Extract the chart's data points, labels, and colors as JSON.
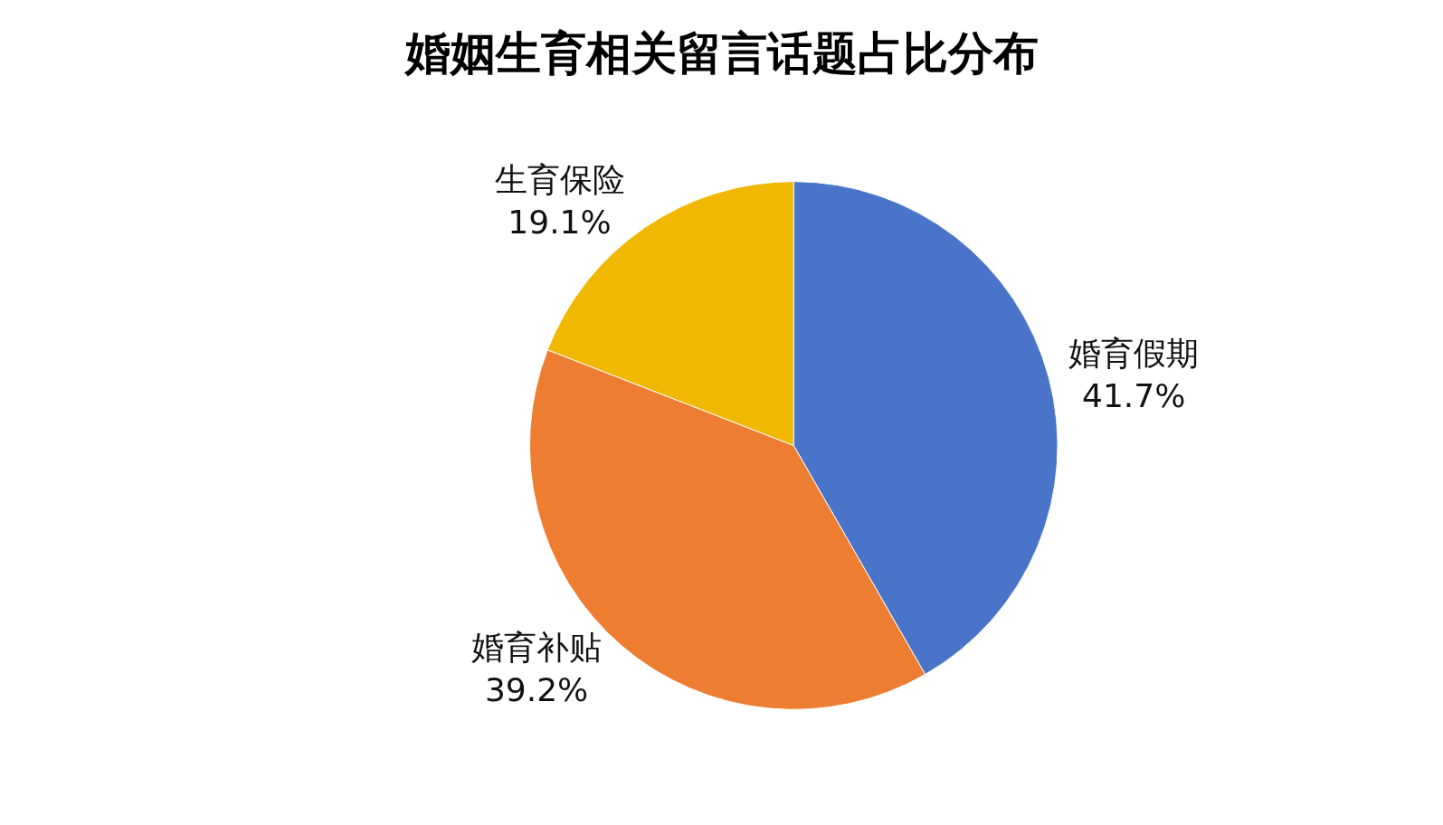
{
  "chart_data": {
    "type": "pie",
    "title": "婚姻生育相关留言话题占比分布",
    "categories": [
      "婚育假期",
      "婚育补贴",
      "生育保险"
    ],
    "values": [
      41.7,
      39.2,
      19.1
    ],
    "value_labels": [
      "41.7%",
      "39.2%",
      "19.1%"
    ],
    "colors": [
      "#4a74c9",
      "#ed7d31",
      "#f0b800"
    ],
    "legend": false
  }
}
